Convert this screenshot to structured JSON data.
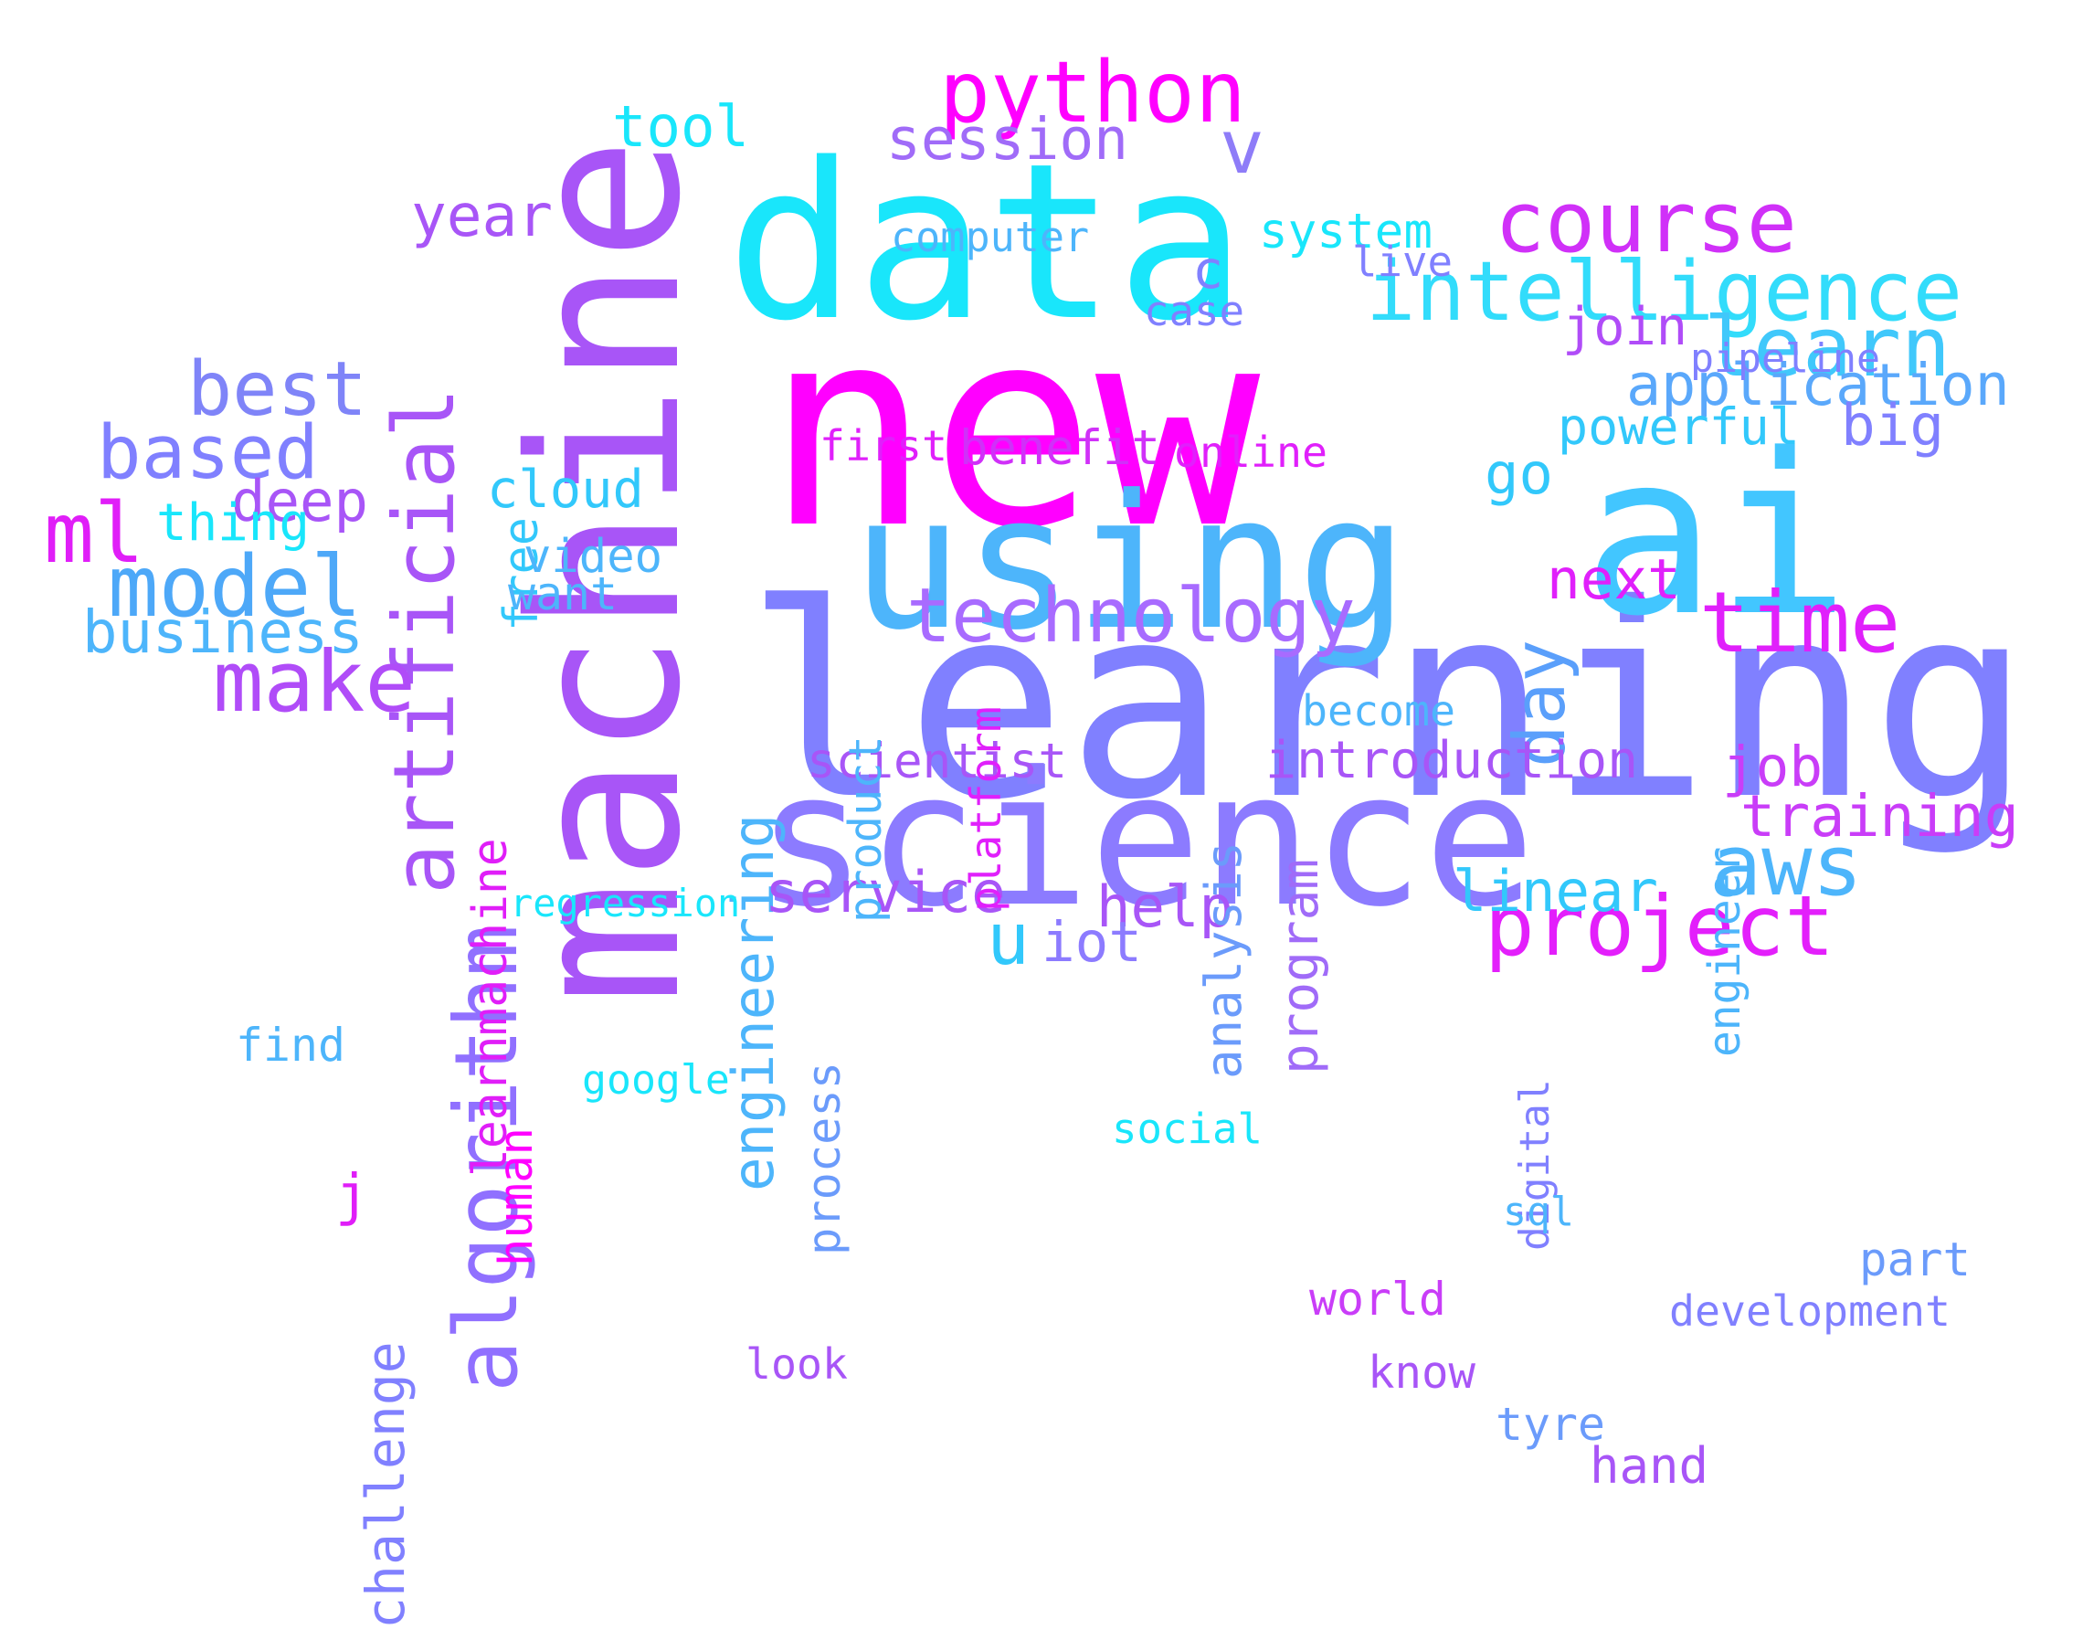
{
  "palette": {
    "magenta": "#ff00ff",
    "violet": "#a855f7",
    "periwinkle": "#8080ff",
    "blue": "#4db5fb",
    "cyan": "#19e6fb",
    "background": "#ffffff"
  },
  "words": [
    {
      "id": "new",
      "text": "new",
      "color": "#ff00ff",
      "vertical": false
    },
    {
      "id": "learning",
      "text": "learning",
      "color": "#8080ff",
      "vertical": false
    },
    {
      "id": "machine",
      "text": "machine",
      "color": "#a855f7",
      "vertical": true
    },
    {
      "id": "data",
      "text": "data",
      "color": "#19e6fb",
      "vertical": false
    },
    {
      "id": "science",
      "text": "science",
      "color": "#8c7bff",
      "vertical": false
    },
    {
      "id": "ai",
      "text": "ai",
      "color": "#42c6ff",
      "vertical": false
    },
    {
      "id": "using",
      "text": "using",
      "color": "#4db5fb",
      "vertical": false
    },
    {
      "id": "python",
      "text": "python",
      "color": "#ff00ff",
      "vertical": false
    },
    {
      "id": "intelligence",
      "text": "intelligence",
      "color": "#32dcfb",
      "vertical": false
    },
    {
      "id": "course",
      "text": "course",
      "color": "#d030f8",
      "vertical": false
    },
    {
      "id": "artificial",
      "text": "artificial",
      "color": "#a855f7",
      "vertical": true
    },
    {
      "id": "technology",
      "text": "technology",
      "color": "#a86bff",
      "vertical": false
    },
    {
      "id": "project",
      "text": "project",
      "color": "#e31ffb",
      "vertical": false
    },
    {
      "id": "learn",
      "text": "learn",
      "color": "#40c8fb",
      "vertical": false
    },
    {
      "id": "time",
      "text": "time",
      "color": "#e020fb",
      "vertical": false
    },
    {
      "id": "algorithm",
      "text": "algorithm",
      "color": "#9070ff",
      "vertical": true
    },
    {
      "id": "model",
      "text": "model",
      "color": "#4da8f8",
      "vertical": false
    },
    {
      "id": "best",
      "text": "best",
      "color": "#7f84f8",
      "vertical": false
    },
    {
      "id": "based",
      "text": "based",
      "color": "#8080ff",
      "vertical": false
    },
    {
      "id": "make",
      "text": "make",
      "color": "#b04cf8",
      "vertical": false
    },
    {
      "id": "aws",
      "text": "aws",
      "color": "#4db5fb",
      "vertical": false
    },
    {
      "id": "ml",
      "text": "ml",
      "color": "#e01ef8",
      "vertical": false
    },
    {
      "id": "session",
      "text": "session",
      "color": "#a06bf8",
      "vertical": false
    },
    {
      "id": "v",
      "text": "v",
      "color": "#8e7cf8",
      "vertical": false
    },
    {
      "id": "application",
      "text": "application",
      "color": "#5aa8fb",
      "vertical": false
    },
    {
      "id": "engineering",
      "text": "engineering",
      "color": "#4db5fb",
      "vertical": true
    },
    {
      "id": "day",
      "text": "day",
      "color": "#5a9ffb",
      "vertical": true
    },
    {
      "id": "tool",
      "text": "tool",
      "color": "#19e6fb",
      "vertical": false
    },
    {
      "id": "join",
      "text": "join",
      "color": "#b04cf8",
      "vertical": false
    },
    {
      "id": "business",
      "text": "business",
      "color": "#4db5fb",
      "vertical": false
    },
    {
      "id": "service",
      "text": "service",
      "color": "#a855f7",
      "vertical": false
    },
    {
      "id": "help",
      "text": "help",
      "color": "#a855f7",
      "vertical": false
    },
    {
      "id": "u",
      "text": "u",
      "color": "#32c8fb",
      "vertical": false
    },
    {
      "id": "iot",
      "text": "iot",
      "color": "#8c7bff",
      "vertical": false
    },
    {
      "id": "training",
      "text": "training",
      "color": "#c93df8",
      "vertical": false
    },
    {
      "id": "linear",
      "text": "linear",
      "color": "#32c8fb",
      "vertical": false
    },
    {
      "id": "year",
      "text": "year",
      "color": "#a855f7",
      "vertical": false
    },
    {
      "id": "free",
      "text": "free",
      "color": "#32c8fb",
      "vertical": true
    },
    {
      "id": "cloud",
      "text": "cloud",
      "color": "#32c8fb",
      "vertical": false
    },
    {
      "id": "deep",
      "text": "deep",
      "color": "#a855f7",
      "vertical": false
    },
    {
      "id": "next",
      "text": "next",
      "color": "#e020fb",
      "vertical": false
    },
    {
      "id": "big",
      "text": "big",
      "color": "#8080ff",
      "vertical": false
    },
    {
      "id": "go",
      "text": "go",
      "color": "#32c8fb",
      "vertical": false
    },
    {
      "id": "program",
      "text": "program",
      "color": "#a06bf8",
      "vertical": true
    },
    {
      "id": "challenge",
      "text": "challenge",
      "color": "#8080ff",
      "vertical": true
    },
    {
      "id": "introduction",
      "text": "introduction",
      "color": "#a855f7",
      "vertical": false
    },
    {
      "id": "job",
      "text": "job",
      "color": "#c93df8",
      "vertical": false
    },
    {
      "id": "scientist",
      "text": "scientist",
      "color": "#a855f7",
      "vertical": false
    },
    {
      "id": "benefit",
      "text": "benefit",
      "color": "#d030f8",
      "vertical": false
    },
    {
      "id": "first",
      "text": "first",
      "color": "#e020fb",
      "vertical": false
    },
    {
      "id": "online",
      "text": "online",
      "color": "#e020fb",
      "vertical": false
    },
    {
      "id": "thing",
      "text": "thing",
      "color": "#19e6fb",
      "vertical": false
    },
    {
      "id": "powerful",
      "text": "powerful",
      "color": "#32c8fb",
      "vertical": false
    },
    {
      "id": "video",
      "text": "video",
      "color": "#4db5fb",
      "vertical": false
    },
    {
      "id": "system",
      "text": "system",
      "color": "#19e6fb",
      "vertical": false
    },
    {
      "id": "computer",
      "text": "computer",
      "color": "#4db5fb",
      "vertical": false
    },
    {
      "id": "pipeline",
      "text": "pipeline",
      "color": "#8080ff",
      "vertical": false
    },
    {
      "id": "find",
      "text": "find",
      "color": "#4db5fb",
      "vertical": false
    },
    {
      "id": "want",
      "text": "want",
      "color": "#4db5fb",
      "vertical": false
    },
    {
      "id": "learnmachine",
      "text": "learnmachine",
      "color": "#e01ef8",
      "vertical": true
    },
    {
      "id": "regression",
      "text": "regression",
      "color": "#19e6fb",
      "vertical": false
    },
    {
      "id": "google",
      "text": "google",
      "color": "#19e6fb",
      "vertical": false
    },
    {
      "id": "social",
      "text": "social",
      "color": "#19e6fb",
      "vertical": false
    },
    {
      "id": "product",
      "text": "product",
      "color": "#4db5fb",
      "vertical": true
    },
    {
      "id": "platform",
      "text": "platform",
      "color": "#e020fb",
      "vertical": true
    },
    {
      "id": "analysis",
      "text": "analysis",
      "color": "#6b9bfb",
      "vertical": true
    },
    {
      "id": "engineer",
      "text": "engineer",
      "color": "#4db5fb",
      "vertical": true
    },
    {
      "id": "process",
      "text": "process",
      "color": "#6b9bfb",
      "vertical": true
    },
    {
      "id": "human",
      "text": "human",
      "color": "#ff00ff",
      "vertical": true
    },
    {
      "id": "digital",
      "text": "digital",
      "color": "#8080ff",
      "vertical": true
    },
    {
      "id": "become",
      "text": "become",
      "color": "#4db5fb",
      "vertical": false
    },
    {
      "id": "live",
      "text": "live",
      "color": "#8080ff",
      "vertical": false
    },
    {
      "id": "case",
      "text": "case",
      "color": "#8080ff",
      "vertical": false
    },
    {
      "id": "c",
      "text": "c",
      "color": "#8080ff",
      "vertical": false
    },
    {
      "id": "j",
      "text": "j",
      "color": "#e01ef8",
      "vertical": false
    },
    {
      "id": "sql",
      "text": "sql",
      "color": "#4db5fb",
      "vertical": false
    },
    {
      "id": "part",
      "text": "part",
      "color": "#6b9bfb",
      "vertical": false
    },
    {
      "id": "world",
      "text": "world",
      "color": "#c93df8",
      "vertical": false
    },
    {
      "id": "development",
      "text": "development",
      "color": "#8080ff",
      "vertical": false
    },
    {
      "id": "look",
      "text": "look",
      "color": "#a855f7",
      "vertical": false
    },
    {
      "id": "know",
      "text": "know",
      "color": "#a855f7",
      "vertical": false
    },
    {
      "id": "tyre",
      "text": "tyre",
      "color": "#6b9bfb",
      "vertical": false
    },
    {
      "id": "hand",
      "text": "hand",
      "color": "#a855f7",
      "vertical": false
    }
  ]
}
